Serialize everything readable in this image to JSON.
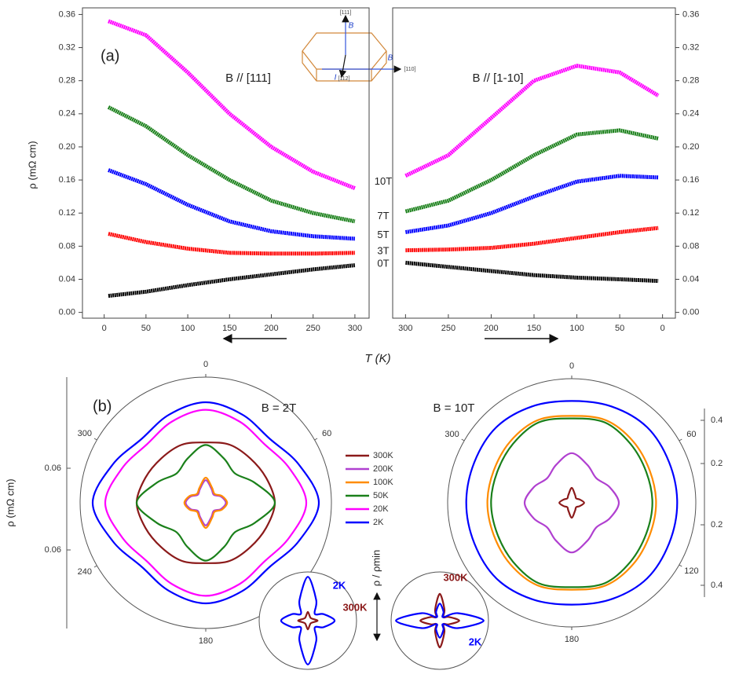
{
  "chart_data": [
    {
      "type": "line",
      "panel_label": "(a)",
      "title": "B // [111]",
      "xlabel": "T (K)",
      "ylabel": "ρ (mΩ cm)",
      "inset_labels": [
        "[111]",
        "B",
        "B",
        "[110]",
        "I",
        "[112]"
      ],
      "x": [
        5,
        50,
        100,
        150,
        200,
        250,
        300
      ],
      "xlim": [
        -26,
        317
      ],
      "xticks": [
        0,
        50,
        100,
        150,
        200,
        250,
        300
      ],
      "ylim": [
        -0.007,
        0.368
      ],
      "yticks": [
        {
          "value": 0,
          "label": "0.00"
        },
        0.04,
        0.08,
        0.12,
        0.16,
        {
          "value": 0.2,
          "label": "0.20"
        },
        0.24,
        0.28,
        0.32,
        0.36
      ],
      "series": [
        {
          "name": "10T",
          "color": "#ff00ff",
          "values": [
            0.352,
            0.335,
            0.29,
            0.24,
            0.2,
            0.17,
            0.15
          ]
        },
        {
          "name": "7T",
          "color": "#1a801a",
          "values": [
            0.248,
            0.225,
            0.19,
            0.16,
            0.135,
            0.12,
            0.11
          ]
        },
        {
          "name": "5T",
          "color": "#0000ff",
          "values": [
            0.172,
            0.155,
            0.13,
            0.11,
            0.098,
            0.092,
            0.089
          ]
        },
        {
          "name": "3T",
          "color": "#ff0000",
          "values": [
            0.095,
            0.085,
            0.077,
            0.072,
            0.071,
            0.071,
            0.072
          ]
        },
        {
          "name": "0T",
          "color": "#000000",
          "values": [
            0.02,
            0.025,
            0.033,
            0.04,
            0.046,
            0.052,
            0.057
          ]
        }
      ]
    },
    {
      "type": "line",
      "title": "B // [1-10]",
      "x": [
        300,
        250,
        200,
        150,
        100,
        50,
        5
      ],
      "xlim": [
        315,
        -15
      ],
      "xticks": [
        300,
        250,
        200,
        150,
        100,
        50,
        0
      ],
      "ylim": [
        -0.007,
        0.368
      ],
      "yticks": [
        {
          "value": 0,
          "label": "0.00"
        },
        0.04,
        0.08,
        0.12,
        0.16,
        {
          "value": 0.2,
          "label": "0.20"
        },
        0.24,
        0.28,
        0.32,
        0.36
      ],
      "series": [
        {
          "color": "#ff00ff",
          "values": [
            0.165,
            0.19,
            0.235,
            0.28,
            0.298,
            0.29,
            0.262
          ]
        },
        {
          "color": "#1a801a",
          "values": [
            0.122,
            0.135,
            0.16,
            0.19,
            0.215,
            0.22,
            0.21
          ]
        },
        {
          "color": "#0000ff",
          "values": [
            0.097,
            0.105,
            0.12,
            0.14,
            0.158,
            0.165,
            0.163
          ]
        },
        {
          "color": "#ff0000",
          "values": [
            0.075,
            0.076,
            0.078,
            0.083,
            0.09,
            0.097,
            0.102
          ]
        },
        {
          "color": "#000000",
          "values": [
            0.06,
            0.055,
            0.05,
            0.045,
            0.042,
            0.04,
            0.038
          ]
        }
      ]
    },
    {
      "type": "polar",
      "panel_label": "(b)",
      "title": "B = 2T",
      "ylabel": "ρ (mΩ cm)",
      "radial_labels": [
        "0.06",
        "0.06"
      ],
      "angle_ticks": [
        0,
        60,
        180,
        240,
        300
      ],
      "rlim": [
        0,
        1
      ],
      "angles": [
        0,
        22.5,
        45,
        67.5,
        90,
        112.5,
        135,
        157.5,
        180,
        202.5,
        225,
        247.5,
        270,
        292.5,
        315,
        337.5
      ],
      "series": [
        {
          "name": "300K",
          "color": "#8b1a1a",
          "values": [
            0.48,
            0.5,
            0.5,
            0.52,
            0.55,
            0.52,
            0.5,
            0.5,
            0.48,
            0.5,
            0.5,
            0.52,
            0.55,
            0.52,
            0.5,
            0.5
          ]
        },
        {
          "name": "200K",
          "color": "#b040d0",
          "values": [
            0.18,
            0.12,
            0.09,
            0.13,
            0.16,
            0.13,
            0.09,
            0.12,
            0.18,
            0.12,
            0.09,
            0.13,
            0.16,
            0.13,
            0.09,
            0.12
          ]
        },
        {
          "name": "100K",
          "color": "#ff8c00",
          "values": [
            0.2,
            0.13,
            0.1,
            0.14,
            0.17,
            0.14,
            0.1,
            0.13,
            0.2,
            0.13,
            0.1,
            0.14,
            0.17,
            0.14,
            0.1,
            0.13
          ]
        },
        {
          "name": "50K",
          "color": "#1a801a",
          "values": [
            0.46,
            0.38,
            0.33,
            0.42,
            0.55,
            0.42,
            0.33,
            0.38,
            0.46,
            0.38,
            0.33,
            0.42,
            0.55,
            0.42,
            0.33,
            0.38
          ]
        },
        {
          "name": "20K",
          "color": "#ff00ff",
          "values": [
            0.74,
            0.7,
            0.66,
            0.72,
            0.8,
            0.72,
            0.66,
            0.7,
            0.74,
            0.7,
            0.66,
            0.72,
            0.8,
            0.72,
            0.66,
            0.7
          ]
        },
        {
          "name": "2K",
          "color": "#0000ff",
          "values": [
            0.8,
            0.76,
            0.72,
            0.8,
            0.9,
            0.8,
            0.72,
            0.76,
            0.8,
            0.76,
            0.72,
            0.8,
            0.9,
            0.8,
            0.72,
            0.76
          ]
        }
      ]
    },
    {
      "type": "polar",
      "title": "B = 10T",
      "radial_labels": [
        "0.4",
        "0.2",
        "0.2",
        "0.4"
      ],
      "angle_ticks": [
        0,
        60,
        120,
        180,
        300
      ],
      "rlim": [
        0,
        1
      ],
      "angles": [
        0,
        22.5,
        45,
        67.5,
        90,
        112.5,
        135,
        157.5,
        180,
        202.5,
        225,
        247.5,
        270,
        292.5,
        315,
        337.5
      ],
      "series": [
        {
          "color": "#8b1a1a",
          "values": [
            0.12,
            0.07,
            0.05,
            0.07,
            0.1,
            0.07,
            0.05,
            0.07,
            0.12,
            0.07,
            0.05,
            0.07,
            0.1,
            0.07,
            0.05,
            0.07
          ]
        },
        {
          "color": "#b040d0",
          "values": [
            0.4,
            0.33,
            0.28,
            0.33,
            0.38,
            0.33,
            0.28,
            0.33,
            0.4,
            0.33,
            0.28,
            0.33,
            0.38,
            0.33,
            0.28,
            0.33
          ]
        },
        {
          "color": "#ff8c00",
          "values": [
            0.7,
            0.72,
            0.7,
            0.68,
            0.68,
            0.68,
            0.7,
            0.72,
            0.7,
            0.72,
            0.7,
            0.68,
            0.68,
            0.68,
            0.7,
            0.72
          ]
        },
        {
          "color": "#1a801a",
          "values": [
            0.68,
            0.7,
            0.67,
            0.65,
            0.65,
            0.65,
            0.67,
            0.7,
            0.68,
            0.7,
            0.67,
            0.65,
            0.65,
            0.65,
            0.67,
            0.7
          ]
        },
        {
          "color": "#0000ff",
          "values": [
            0.82,
            0.84,
            0.86,
            0.85,
            0.85,
            0.85,
            0.86,
            0.84,
            0.82,
            0.84,
            0.86,
            0.85,
            0.85,
            0.85,
            0.86,
            0.84
          ]
        }
      ]
    },
    {
      "type": "polar",
      "rlim": [
        0,
        1
      ],
      "angles": [
        0,
        22.5,
        45,
        67.5,
        90,
        112.5,
        135,
        157.5,
        180,
        202.5,
        225,
        247.5,
        270,
        292.5,
        315,
        337.5
      ],
      "series": [
        {
          "name": "2K",
          "color": "#0000ff",
          "values": [
            0.9,
            0.45,
            0.2,
            0.35,
            0.55,
            0.35,
            0.2,
            0.45,
            0.9,
            0.45,
            0.2,
            0.35,
            0.55,
            0.35,
            0.2,
            0.45
          ]
        },
        {
          "name": "300K",
          "color": "#8b1a1a",
          "values": [
            0.18,
            0.1,
            0.08,
            0.1,
            0.2,
            0.1,
            0.08,
            0.1,
            0.18,
            0.1,
            0.08,
            0.1,
            0.2,
            0.1,
            0.08,
            0.1
          ]
        }
      ]
    },
    {
      "type": "polar",
      "ylabel": "ρ / ρmin",
      "rlim": [
        0,
        1
      ],
      "angles": [
        0,
        22.5,
        45,
        67.5,
        90,
        112.5,
        135,
        157.5,
        180,
        202.5,
        225,
        247.5,
        270,
        292.5,
        315,
        337.5
      ],
      "series": [
        {
          "name": "300K",
          "color": "#8b1a1a",
          "values": [
            0.55,
            0.25,
            0.1,
            0.2,
            0.4,
            0.2,
            0.1,
            0.25,
            0.55,
            0.25,
            0.1,
            0.2,
            0.4,
            0.2,
            0.1,
            0.25
          ]
        },
        {
          "name": "2K",
          "color": "#0000ff",
          "values": [
            0.35,
            0.2,
            0.1,
            0.4,
            0.9,
            0.4,
            0.1,
            0.2,
            0.35,
            0.2,
            0.1,
            0.4,
            0.9,
            0.4,
            0.1,
            0.2
          ]
        }
      ]
    }
  ]
}
